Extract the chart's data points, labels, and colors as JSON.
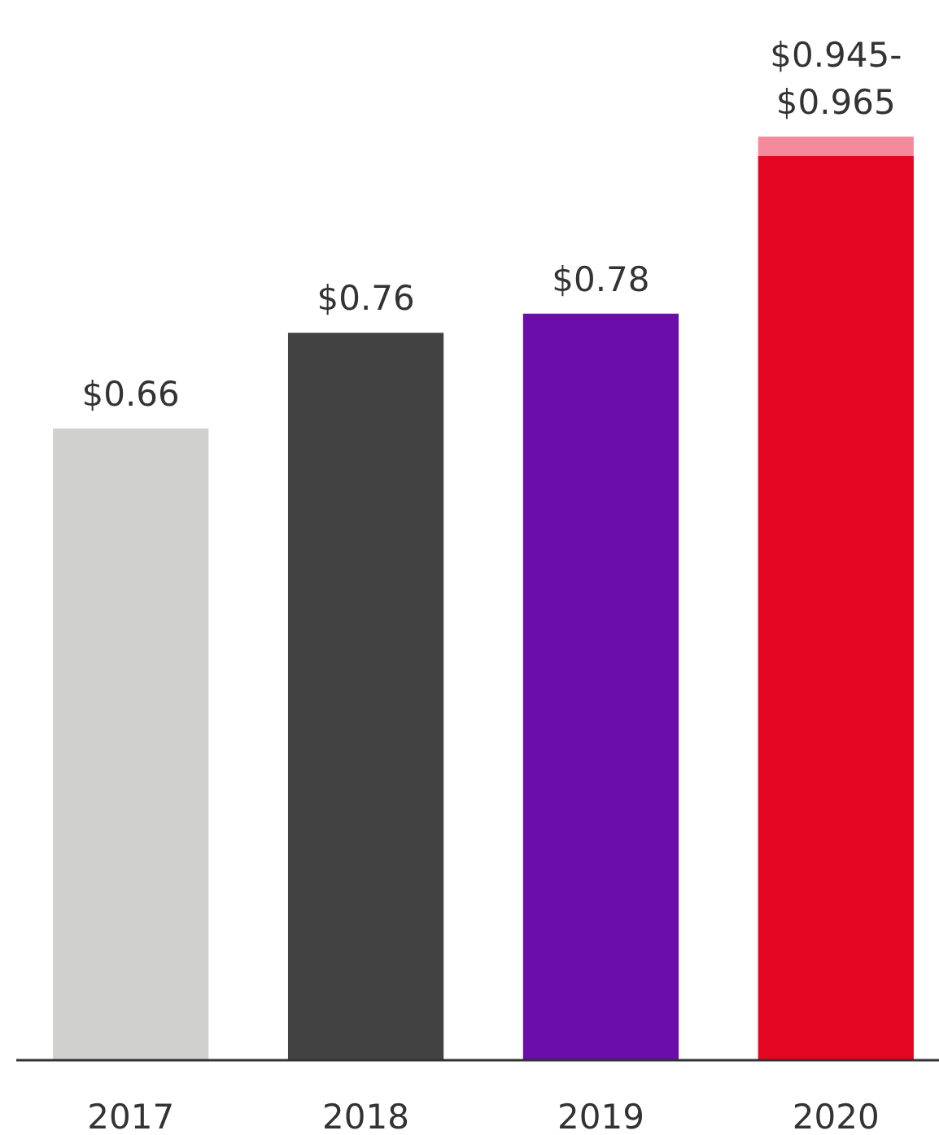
{
  "chart_data": {
    "type": "bar",
    "stacked": true,
    "categories": [
      "2017",
      "2018",
      "2019",
      "2020"
    ],
    "series": [
      {
        "colors": [
          "#d0d0ce",
          "#414141",
          "#6a0dab",
          "#e30521"
        ],
        "values": [
          0.66,
          0.76,
          0.78,
          0.945
        ],
        "value_labels": [
          "$0.66",
          "$0.76",
          "$0.78",
          null
        ]
      },
      {
        "color": "#f48a9a",
        "values": [
          null,
          null,
          null,
          0.02
        ],
        "value_labels": [
          null,
          null,
          null,
          "$0.945-$0.965"
        ]
      }
    ],
    "tick_labels": "x"
  }
}
